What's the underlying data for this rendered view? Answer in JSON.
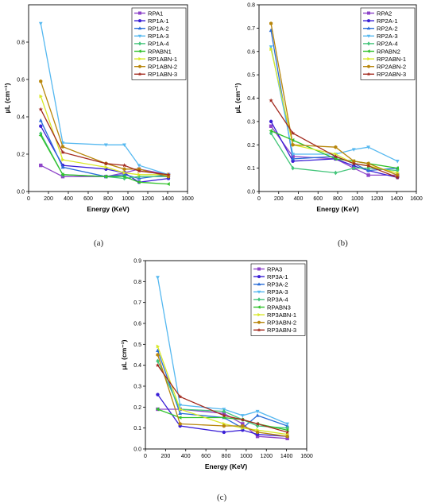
{
  "panel_captions": [
    "(a)",
    "(b)",
    "(c)"
  ],
  "chart_data": [
    {
      "type": "line",
      "panel": "(a)",
      "xlabel": "Energy (KeV)",
      "ylabel": "μL (cm⁻¹)",
      "xlim": [
        0,
        1600
      ],
      "ylim": [
        0,
        1.0
      ],
      "xticks": [
        0,
        200,
        400,
        600,
        800,
        1000,
        1200,
        1400,
        1600
      ],
      "yticks": [
        0.0,
        0.2,
        0.4,
        0.6,
        0.8
      ],
      "x": [
        122,
        344,
        779,
        964,
        1112,
        1408
      ],
      "legend_position": "top-right",
      "series": [
        {
          "name": "RPA1",
          "color": "#8e44c9",
          "marker": "square",
          "values": [
            0.14,
            0.08,
            0.08,
            0.1,
            0.12,
            0.09
          ]
        },
        {
          "name": "RP1A-1",
          "color": "#3a1fd6",
          "marker": "circle",
          "values": [
            0.35,
            0.14,
            0.12,
            0.1,
            0.05,
            0.07
          ]
        },
        {
          "name": "RP1A-2",
          "color": "#2a6ed8",
          "marker": "triangle-up",
          "values": [
            0.38,
            0.13,
            0.08,
            0.09,
            0.07,
            0.09
          ]
        },
        {
          "name": "RP1A-3",
          "color": "#55b8f0",
          "marker": "triangle-down",
          "values": [
            0.9,
            0.26,
            0.25,
            0.25,
            0.14,
            0.09
          ]
        },
        {
          "name": "RP1A-4",
          "color": "#43c57a",
          "marker": "diamond",
          "values": [
            0.31,
            0.09,
            0.08,
            0.07,
            0.08,
            0.08
          ]
        },
        {
          "name": "RPABN1",
          "color": "#31c22b",
          "marker": "triangle-left",
          "values": [
            0.3,
            0.09,
            0.08,
            0.08,
            0.05,
            0.04
          ]
        },
        {
          "name": "RP1ABN-1",
          "color": "#d8e827",
          "marker": "triangle-right",
          "values": [
            0.51,
            0.17,
            0.13,
            0.1,
            0.09,
            0.09
          ]
        },
        {
          "name": "RP1ABN-2",
          "color": "#b8860b",
          "marker": "hexagon",
          "values": [
            0.59,
            0.24,
            0.15,
            0.12,
            0.12,
            0.08
          ]
        },
        {
          "name": "RP1ABN-3",
          "color": "#a32b1f",
          "marker": "star",
          "values": [
            0.44,
            0.21,
            0.15,
            0.14,
            0.11,
            0.09
          ]
        }
      ]
    },
    {
      "type": "line",
      "panel": "(b)",
      "xlabel": "Energy (KeV)",
      "ylabel": "μL (cm⁻¹)",
      "xlim": [
        0,
        1600
      ],
      "ylim": [
        0,
        0.8
      ],
      "xticks": [
        0,
        200,
        400,
        600,
        800,
        1000,
        1200,
        1400,
        1600
      ],
      "yticks": [
        0.0,
        0.1,
        0.2,
        0.3,
        0.4,
        0.5,
        0.6,
        0.7,
        0.8
      ],
      "x": [
        122,
        344,
        779,
        964,
        1112,
        1408
      ],
      "legend_position": "top-right",
      "series": [
        {
          "name": "RPA2",
          "color": "#8e44c9",
          "marker": "square",
          "values": [
            0.28,
            0.15,
            0.14,
            0.1,
            0.07,
            0.07
          ]
        },
        {
          "name": "RP2A-1",
          "color": "#3a1fd6",
          "marker": "circle",
          "values": [
            0.3,
            0.13,
            0.14,
            0.11,
            0.09,
            0.06
          ]
        },
        {
          "name": "RP2A-2",
          "color": "#2a6ed8",
          "marker": "triangle-up",
          "values": [
            0.69,
            0.14,
            0.15,
            0.12,
            0.09,
            0.1
          ]
        },
        {
          "name": "RP2A-3",
          "color": "#55b8f0",
          "marker": "triangle-down",
          "values": [
            0.62,
            0.16,
            0.16,
            0.18,
            0.19,
            0.13
          ]
        },
        {
          "name": "RP2A-4",
          "color": "#43c57a",
          "marker": "diamond",
          "values": [
            0.25,
            0.1,
            0.08,
            0.1,
            0.1,
            0.09
          ]
        },
        {
          "name": "RPABN2",
          "color": "#31c22b",
          "marker": "triangle-left",
          "values": [
            0.26,
            0.22,
            0.14,
            0.13,
            0.12,
            0.1
          ]
        },
        {
          "name": "RP2ABN-1",
          "color": "#d8e827",
          "marker": "triangle-right",
          "values": [
            0.61,
            0.2,
            0.16,
            0.12,
            0.11,
            0.08
          ]
        },
        {
          "name": "RP2ABN-2",
          "color": "#b8860b",
          "marker": "hexagon",
          "values": [
            0.72,
            0.2,
            0.19,
            0.13,
            0.12,
            0.07
          ]
        },
        {
          "name": "RP2ABN-3",
          "color": "#a32b1f",
          "marker": "star",
          "values": [
            0.39,
            0.25,
            0.15,
            0.12,
            0.11,
            0.06
          ]
        }
      ]
    },
    {
      "type": "line",
      "panel": "(c)",
      "xlabel": "Energy (KeV)",
      "ylabel": "μL (cm⁻¹)",
      "xlim": [
        0,
        1600
      ],
      "ylim": [
        0,
        0.9
      ],
      "xticks": [
        0,
        200,
        400,
        600,
        800,
        1000,
        1200,
        1400,
        1600
      ],
      "yticks": [
        0.0,
        0.1,
        0.2,
        0.3,
        0.4,
        0.5,
        0.6,
        0.7,
        0.8,
        0.9
      ],
      "x": [
        122,
        344,
        779,
        964,
        1112,
        1408
      ],
      "legend_position": "top-right",
      "series": [
        {
          "name": "RPA3",
          "color": "#8e44c9",
          "marker": "square",
          "values": [
            0.19,
            0.19,
            0.17,
            0.12,
            0.06,
            0.05
          ]
        },
        {
          "name": "RP3A-1",
          "color": "#3a1fd6",
          "marker": "circle",
          "values": [
            0.26,
            0.11,
            0.08,
            0.09,
            0.07,
            0.06
          ]
        },
        {
          "name": "RP3A-2",
          "color": "#2a6ed8",
          "marker": "triangle-up",
          "values": [
            0.47,
            0.17,
            0.15,
            0.1,
            0.16,
            0.11
          ]
        },
        {
          "name": "RP3A-3",
          "color": "#55b8f0",
          "marker": "triangle-down",
          "values": [
            0.82,
            0.21,
            0.19,
            0.16,
            0.18,
            0.12
          ]
        },
        {
          "name": "RP3A-4",
          "color": "#43c57a",
          "marker": "diamond",
          "values": [
            0.42,
            0.19,
            0.18,
            0.14,
            0.11,
            0.1
          ]
        },
        {
          "name": "RPABN3",
          "color": "#31c22b",
          "marker": "triangle-left",
          "values": [
            0.19,
            0.15,
            0.15,
            0.14,
            0.12,
            0.09
          ]
        },
        {
          "name": "RP3ABN-1",
          "color": "#d8e827",
          "marker": "triangle-right",
          "values": [
            0.49,
            0.19,
            0.12,
            0.1,
            0.09,
            0.07
          ]
        },
        {
          "name": "RP3ABN-2",
          "color": "#b8860b",
          "marker": "hexagon",
          "values": [
            0.45,
            0.12,
            0.11,
            0.11,
            0.08,
            0.06
          ]
        },
        {
          "name": "RP3ABN-3",
          "color": "#a32b1f",
          "marker": "star",
          "values": [
            0.4,
            0.25,
            0.16,
            0.14,
            0.12,
            0.08
          ]
        }
      ]
    }
  ]
}
